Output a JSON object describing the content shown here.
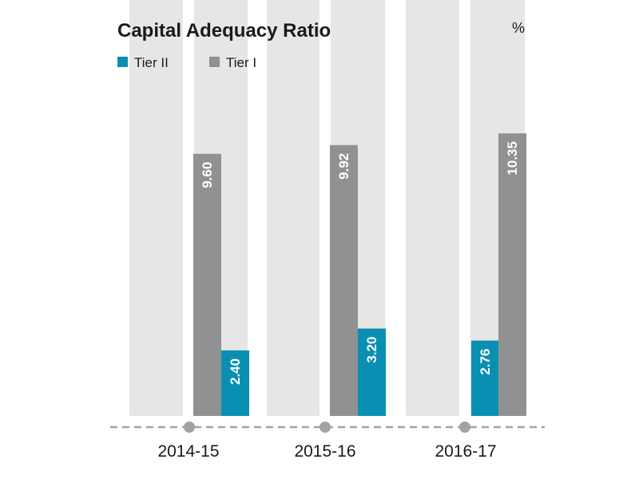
{
  "chart_data": {
    "type": "bar",
    "title": "Capital Adequacy Ratio",
    "unit": "%",
    "categories": [
      "2014-15",
      "2015-16",
      "2016-17"
    ],
    "series": [
      {
        "name": "Tier II",
        "color": "#0a8fb3",
        "values": [
          2.4,
          3.2,
          2.76
        ],
        "labels": [
          "2.40",
          "3.20",
          "2.76"
        ]
      },
      {
        "name": "Tier I",
        "color": "#909193",
        "values": [
          9.6,
          9.92,
          10.35
        ],
        "labels": [
          "9.60",
          "9.92",
          "10.35"
        ]
      }
    ],
    "legend_position": "top-left",
    "grid": false
  }
}
